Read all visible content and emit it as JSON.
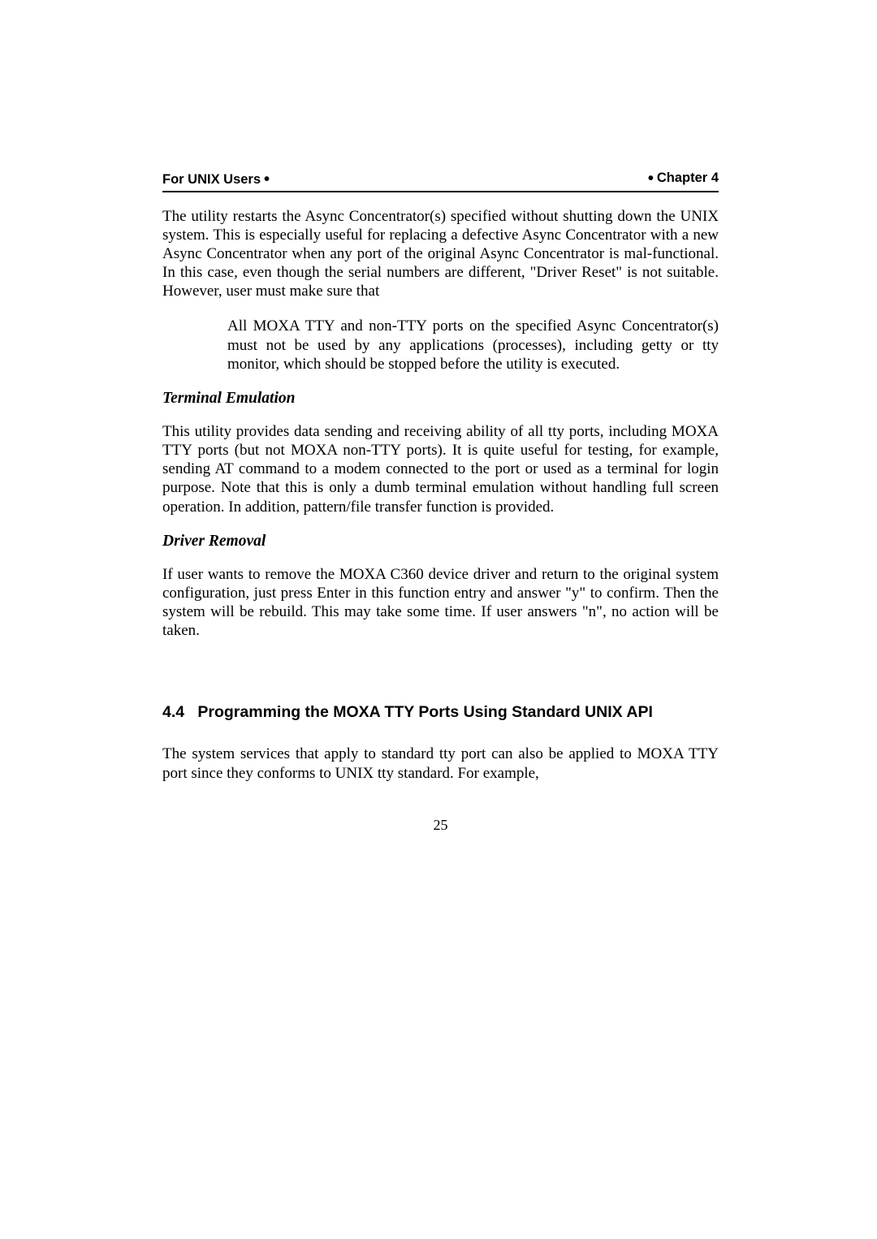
{
  "header": {
    "left": "For UNIX Users",
    "right": "Chapter 4",
    "bullet_glyph": "•"
  },
  "para1": "The utility restarts the Async Concentrator(s) specified without shutting down the UNIX system.   This is especially useful for replacing a defective Async Concentrator with a new Async Concentrator when any port of the original Async Concentrator is mal-functional.   In this case, even though the serial numbers are different, \"Driver Reset\" is not suitable.   However, user must make sure that",
  "para1_indent": "All MOXA TTY and non-TTY ports on the specified Async Concentrator(s) must not be used by any applications (processes), including getty or tty monitor, which should be stopped before the utility is executed.",
  "sub1": "Terminal Emulation",
  "para2": "This utility provides data sending and receiving ability of all tty ports, including MOXA TTY ports (but not MOXA non-TTY ports).   It is quite useful for testing, for example, sending AT command to a modem connected to the port or used as a terminal for login purpose.   Note that this is only a dumb terminal emulation without handling full screen operation.   In addition, pattern/file transfer function is provided.",
  "sub2": "Driver Removal",
  "para3": "If user wants to remove the MOXA C360 device driver and return to the original system configuration, just press Enter in this function entry and answer \"y\" to confirm.   Then the system will be rebuild.   This may take some time.   If user answers \"n\", no action will be taken.",
  "section": {
    "number": "4.4",
    "title": "Programming the MOXA TTY Ports Using Standard UNIX API"
  },
  "para4": "The system services that apply to standard tty port can also be applied to MOXA TTY port since they conforms to UNIX tty standard.   For example,",
  "page_number": "25"
}
